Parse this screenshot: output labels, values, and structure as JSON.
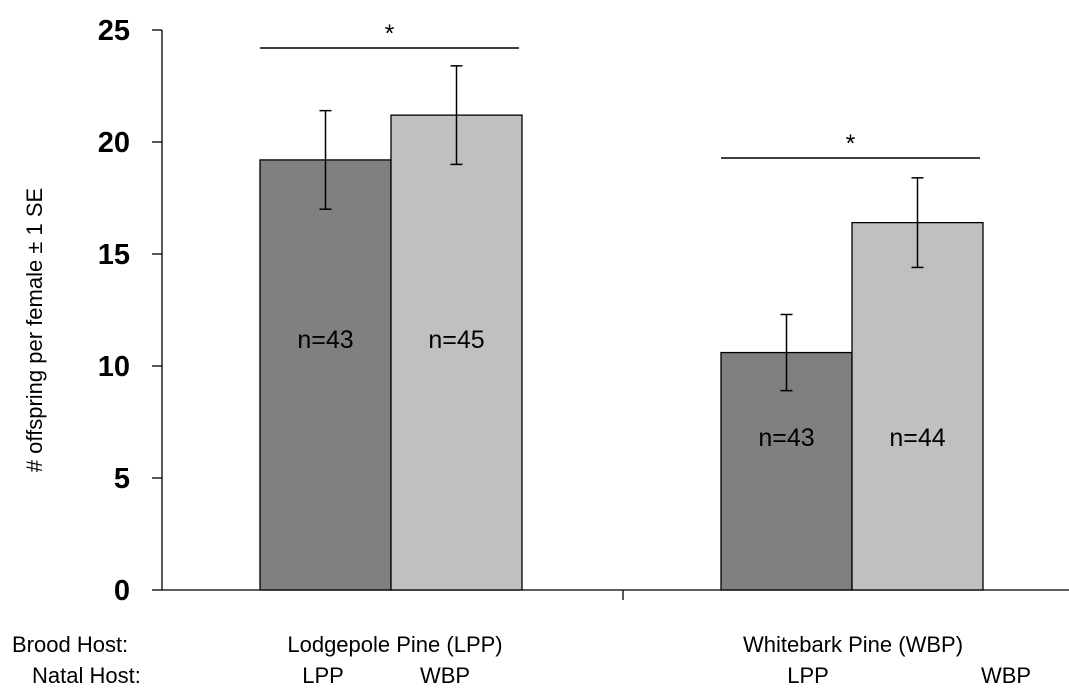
{
  "chart_data": {
    "type": "bar",
    "title": "",
    "ylabel": "# offspring per female ± 1 SE",
    "ylim": [
      0,
      25
    ],
    "yticks": [
      0,
      5,
      10,
      15,
      20,
      25
    ],
    "grid": false,
    "legend": "none",
    "groups": [
      {
        "brood_host": "Lodgepole Pine (LPP)",
        "significance": "*",
        "bars": [
          {
            "natal_host": "LPP",
            "value": 19.2,
            "se": 2.2,
            "n_label": "n=43"
          },
          {
            "natal_host": "WBP",
            "value": 21.2,
            "se": 2.2,
            "n_label": "n=45"
          }
        ]
      },
      {
        "brood_host": "Whitebark Pine (WBP)",
        "significance": "*",
        "bars": [
          {
            "natal_host": "LPP",
            "value": 10.6,
            "se": 1.7,
            "n_label": "n=43"
          },
          {
            "natal_host": "WBP",
            "value": 16.4,
            "se": 2.0,
            "n_label": "n=44"
          }
        ]
      }
    ],
    "row_labels": {
      "brood": "Brood Host:",
      "natal": "Natal Host:"
    },
    "colors": {
      "LPP": "#808080",
      "WBP": "#c0c0c0"
    }
  }
}
